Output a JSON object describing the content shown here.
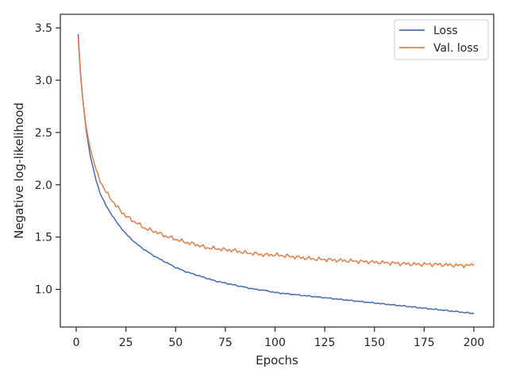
{
  "chart_data": {
    "type": "line",
    "xlabel": "Epochs",
    "ylabel": "Negative log-likelihood",
    "xlim": [
      -8,
      210
    ],
    "ylim": [
      0.64,
      3.63
    ],
    "grid": false,
    "legend_position": "top-right",
    "x_ticks": [
      0,
      25,
      50,
      75,
      100,
      125,
      150,
      175,
      200
    ],
    "y_ticks": [
      1.0,
      1.5,
      2.0,
      2.5,
      3.0,
      3.5
    ],
    "y_tick_labels": [
      "1.0",
      "1.5",
      "2.0",
      "2.5",
      "3.0",
      "3.5"
    ],
    "x": [
      1,
      2,
      3,
      5,
      7,
      10,
      12,
      15,
      20,
      25,
      30,
      35,
      40,
      45,
      50,
      55,
      60,
      65,
      70,
      75,
      80,
      85,
      90,
      95,
      100,
      110,
      120,
      130,
      140,
      150,
      160,
      170,
      180,
      190,
      200
    ],
    "series": [
      {
        "name": "Loss",
        "color": "#4c72b0",
        "values": [
          3.44,
          3.12,
          2.87,
          2.52,
          2.28,
          2.04,
          1.92,
          1.8,
          1.65,
          1.53,
          1.44,
          1.37,
          1.31,
          1.26,
          1.21,
          1.17,
          1.14,
          1.11,
          1.08,
          1.06,
          1.04,
          1.02,
          1.0,
          0.99,
          0.97,
          0.95,
          0.93,
          0.91,
          0.89,
          0.87,
          0.85,
          0.83,
          0.81,
          0.79,
          0.77
        ]
      },
      {
        "name": "Val. loss",
        "color": "#dd8452",
        "values": [
          3.4,
          3.1,
          2.86,
          2.55,
          2.35,
          2.14,
          2.04,
          1.93,
          1.8,
          1.7,
          1.64,
          1.58,
          1.55,
          1.51,
          1.48,
          1.45,
          1.43,
          1.4,
          1.39,
          1.38,
          1.37,
          1.35,
          1.34,
          1.33,
          1.33,
          1.31,
          1.29,
          1.28,
          1.27,
          1.26,
          1.25,
          1.24,
          1.24,
          1.23,
          1.23
        ]
      }
    ]
  }
}
